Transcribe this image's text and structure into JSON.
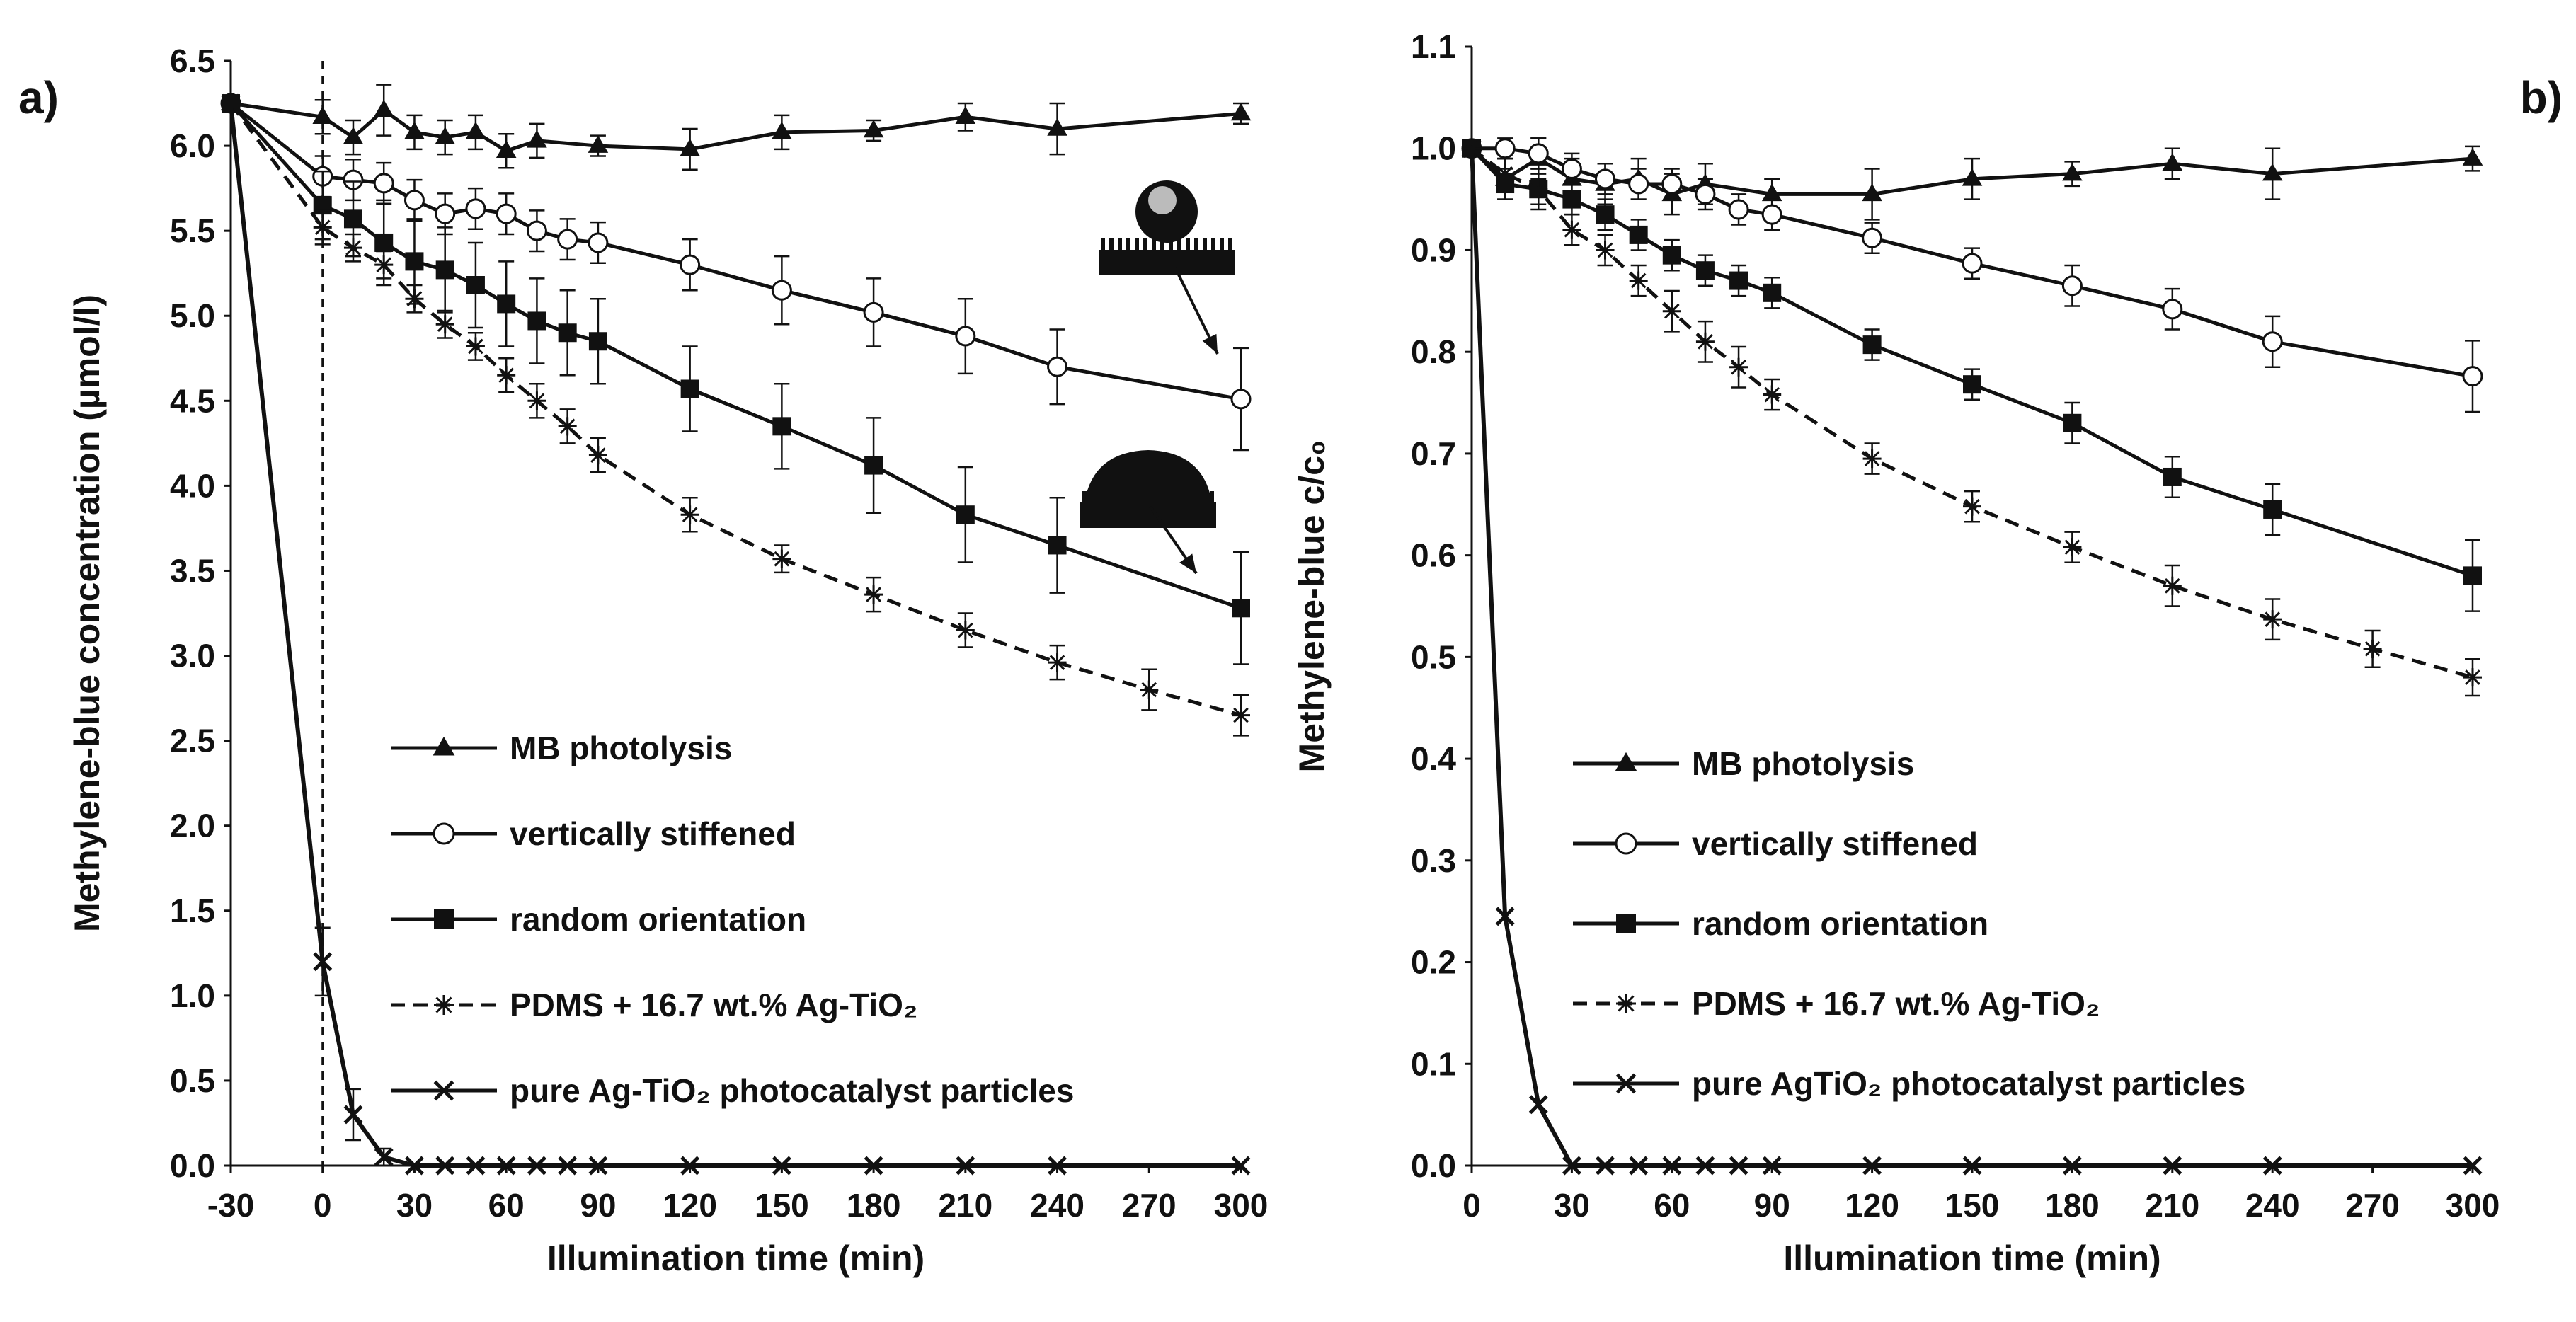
{
  "chart_data": [
    {
      "type": "line",
      "panel_label": "a)",
      "xlabel": "Illumination time (min)",
      "ylabel": "Methylene-blue concentration (µmol/l)",
      "xlim": [
        -30,
        300
      ],
      "ylim": [
        0,
        6.5
      ],
      "xticks": [
        "-30",
        "0",
        "30",
        "60",
        "90",
        "120",
        "150",
        "180",
        "210",
        "240",
        "270",
        "300"
      ],
      "yticks": [
        "0.0",
        "0.5",
        "1.0",
        "1.5",
        "2.0",
        "2.5",
        "3.0",
        "3.5",
        "4.0",
        "4.5",
        "5.0",
        "5.5",
        "6.0",
        "6.5"
      ],
      "start_line_x": 0,
      "insets": [
        {
          "name": "droplet-on-vertically-stiffened-surface",
          "points_to_series": "vertically stiffened"
        },
        {
          "name": "droplet-on-random-orientation-surface",
          "points_to_series": "random orientation"
        }
      ],
      "series": [
        {
          "name": "MB photolysis",
          "marker": "triangle",
          "dashed": false,
          "x": [
            -30,
            0,
            10,
            20,
            30,
            40,
            50,
            60,
            70,
            90,
            120,
            150,
            180,
            210,
            240,
            300
          ],
          "values": [
            6.25,
            6.17,
            6.05,
            6.21,
            6.08,
            6.05,
            6.08,
            5.97,
            6.03,
            6.0,
            5.98,
            6.08,
            6.09,
            6.17,
            6.1,
            6.19
          ],
          "errors": [
            0,
            0.1,
            0.1,
            0.15,
            0.1,
            0.1,
            0.1,
            0.1,
            0.1,
            0.06,
            0.12,
            0.1,
            0.06,
            0.08,
            0.15,
            0.06
          ]
        },
        {
          "name": "vertically stiffened",
          "marker": "open-circle",
          "dashed": false,
          "x": [
            -30,
            0,
            10,
            20,
            30,
            40,
            50,
            60,
            70,
            80,
            90,
            120,
            150,
            180,
            210,
            240,
            300
          ],
          "values": [
            6.25,
            5.82,
            5.8,
            5.78,
            5.68,
            5.6,
            5.63,
            5.6,
            5.5,
            5.45,
            5.43,
            5.3,
            5.15,
            5.02,
            4.88,
            4.7,
            4.51
          ],
          "errors": [
            0,
            0.12,
            0.12,
            0.12,
            0.12,
            0.12,
            0.12,
            0.12,
            0.12,
            0.12,
            0.12,
            0.15,
            0.2,
            0.2,
            0.22,
            0.22,
            0.3
          ]
        },
        {
          "name": "random orientation",
          "marker": "filled-square",
          "dashed": false,
          "x": [
            -30,
            0,
            10,
            20,
            30,
            40,
            50,
            60,
            70,
            80,
            90,
            120,
            150,
            180,
            210,
            240,
            300
          ],
          "values": [
            6.25,
            5.65,
            5.57,
            5.43,
            5.32,
            5.27,
            5.18,
            5.07,
            4.97,
            4.9,
            4.85,
            4.57,
            4.35,
            4.12,
            3.83,
            3.65,
            3.28
          ],
          "errors": [
            0,
            0.2,
            0.22,
            0.25,
            0.25,
            0.25,
            0.25,
            0.25,
            0.25,
            0.25,
            0.25,
            0.25,
            0.25,
            0.28,
            0.28,
            0.28,
            0.33
          ]
        },
        {
          "name": "PDMS + 16.7 wt.% Ag-TiO₂",
          "marker": "asterisk",
          "dashed": true,
          "x": [
            -30,
            0,
            10,
            20,
            30,
            40,
            50,
            60,
            70,
            80,
            90,
            120,
            150,
            180,
            210,
            240,
            270,
            300
          ],
          "values": [
            6.25,
            5.52,
            5.4,
            5.3,
            5.1,
            4.95,
            4.82,
            4.65,
            4.5,
            4.35,
            4.18,
            3.83,
            3.57,
            3.36,
            3.15,
            2.96,
            2.8,
            2.65
          ],
          "errors": [
            0,
            0.1,
            0.08,
            0.08,
            0.08,
            0.08,
            0.08,
            0.1,
            0.1,
            0.1,
            0.1,
            0.1,
            0.08,
            0.1,
            0.1,
            0.1,
            0.12,
            0.12
          ]
        },
        {
          "name": "pure Ag-TiO₂ photocatalyst particles",
          "marker": "x",
          "dashed": false,
          "x": [
            -30,
            0,
            10,
            20,
            30,
            40,
            50,
            60,
            70,
            80,
            90,
            120,
            150,
            180,
            210,
            240,
            300
          ],
          "values": [
            6.25,
            1.2,
            0.3,
            0.05,
            0,
            0,
            0,
            0,
            0,
            0,
            0,
            0,
            0,
            0,
            0,
            0,
            0
          ],
          "errors": [
            0,
            0.2,
            0.15,
            0.05,
            0,
            0,
            0,
            0,
            0,
            0,
            0,
            0,
            0,
            0,
            0,
            0,
            0
          ]
        }
      ]
    },
    {
      "type": "line",
      "panel_label": "b)",
      "xlabel": "Illumination time (min)",
      "ylabel": "Methylene-blue c/c₀",
      "xlim": [
        0,
        300
      ],
      "ylim": [
        0,
        1.1
      ],
      "xticks": [
        "0",
        "30",
        "60",
        "90",
        "120",
        "150",
        "180",
        "210",
        "240",
        "270",
        "300"
      ],
      "yticks": [
        "0.0",
        "0.1",
        "0.2",
        "0.3",
        "0.4",
        "0.5",
        "0.6",
        "0.7",
        "0.8",
        "0.9",
        "1.0",
        "1.1"
      ],
      "series": [
        {
          "name": "MB photolysis",
          "marker": "triangle",
          "dashed": false,
          "x": [
            0,
            10,
            20,
            30,
            40,
            50,
            60,
            70,
            90,
            120,
            150,
            180,
            210,
            240,
            300
          ],
          "values": [
            1.0,
            0.97,
            0.99,
            0.97,
            0.965,
            0.97,
            0.955,
            0.965,
            0.955,
            0.955,
            0.97,
            0.975,
            0.985,
            0.975,
            0.99
          ],
          "errors": [
            0,
            0.02,
            0.02,
            0.02,
            0.02,
            0.02,
            0.02,
            0.02,
            0.015,
            0.025,
            0.02,
            0.012,
            0.015,
            0.025,
            0.012
          ]
        },
        {
          "name": "vertically stiffened",
          "marker": "open-circle",
          "dashed": false,
          "x": [
            0,
            10,
            20,
            30,
            40,
            50,
            60,
            70,
            80,
            90,
            120,
            150,
            180,
            210,
            240,
            300
          ],
          "values": [
            1.0,
            1.0,
            0.995,
            0.98,
            0.97,
            0.965,
            0.965,
            0.955,
            0.94,
            0.935,
            0.912,
            0.887,
            0.865,
            0.842,
            0.81,
            0.776
          ],
          "errors": [
            0,
            0.01,
            0.015,
            0.015,
            0.015,
            0.015,
            0.015,
            0.015,
            0.015,
            0.015,
            0.015,
            0.015,
            0.02,
            0.02,
            0.025,
            0.035
          ]
        },
        {
          "name": "random orientation",
          "marker": "filled-square",
          "dashed": false,
          "x": [
            0,
            10,
            20,
            30,
            40,
            50,
            60,
            70,
            80,
            90,
            120,
            150,
            180,
            210,
            240,
            300
          ],
          "values": [
            1.0,
            0.965,
            0.96,
            0.95,
            0.935,
            0.915,
            0.895,
            0.88,
            0.87,
            0.858,
            0.807,
            0.768,
            0.73,
            0.677,
            0.645,
            0.58
          ],
          "errors": [
            0,
            0.015,
            0.015,
            0.015,
            0.015,
            0.015,
            0.015,
            0.015,
            0.015,
            0.015,
            0.015,
            0.015,
            0.02,
            0.02,
            0.025,
            0.035
          ]
        },
        {
          "name": "PDMS + 16.7 wt.% Ag-TiO₂",
          "marker": "asterisk",
          "dashed": true,
          "x": [
            0,
            10,
            20,
            30,
            40,
            50,
            60,
            70,
            80,
            90,
            120,
            150,
            180,
            210,
            240,
            270,
            300
          ],
          "values": [
            1.0,
            0.975,
            0.96,
            0.92,
            0.9,
            0.87,
            0.84,
            0.81,
            0.785,
            0.758,
            0.695,
            0.648,
            0.608,
            0.57,
            0.537,
            0.508,
            0.48
          ],
          "errors": [
            0,
            0.015,
            0.02,
            0.015,
            0.015,
            0.015,
            0.02,
            0.02,
            0.02,
            0.015,
            0.015,
            0.015,
            0.015,
            0.02,
            0.02,
            0.018,
            0.018
          ]
        },
        {
          "name": "pure AgTiO₂ photocatalyst particles",
          "marker": "x",
          "dashed": false,
          "x": [
            0,
            10,
            20,
            30,
            40,
            50,
            60,
            70,
            80,
            90,
            120,
            150,
            180,
            210,
            240,
            300
          ],
          "values": [
            1.0,
            0.245,
            0.06,
            0,
            0,
            0,
            0,
            0,
            0,
            0,
            0,
            0,
            0,
            0,
            0,
            0
          ],
          "errors": [
            0,
            0,
            0,
            0,
            0,
            0,
            0,
            0,
            0,
            0,
            0,
            0,
            0,
            0,
            0,
            0
          ]
        }
      ]
    }
  ]
}
